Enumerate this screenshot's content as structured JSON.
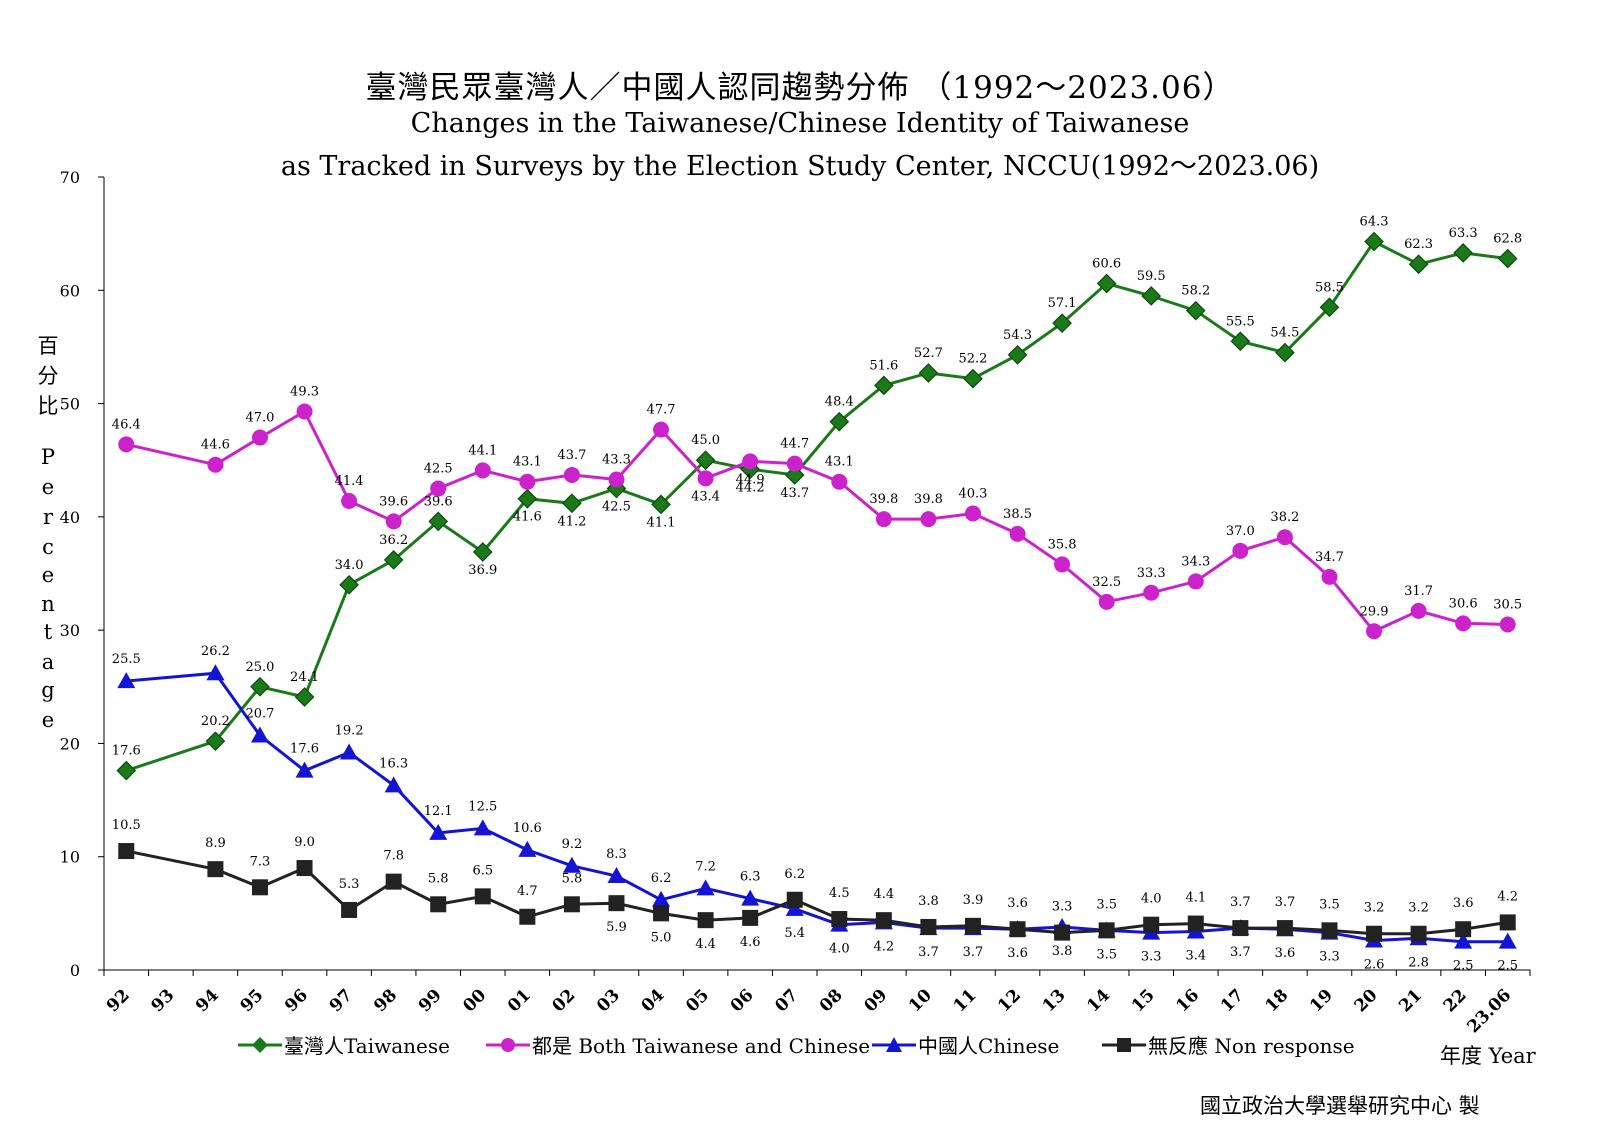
{
  "titles": {
    "zh": "臺灣民眾臺灣人／中國人認同趨勢分佈 （1992～2023.06）",
    "en1": "Changes in the Taiwanese/Chinese Identity of Taiwanese",
    "en2": "as Tracked in Surveys by the Election Study Center, NCCU(1992～2023.06)"
  },
  "ylabel_chars": [
    "百",
    "分",
    "比",
    "P",
    "e",
    "r",
    "c",
    "e",
    "n",
    "t",
    "a",
    "g",
    "e"
  ],
  "xtitle": "年度 Year",
  "credit": "國立政治大學選舉研究中心 製",
  "chart_data": {
    "type": "line",
    "ylim": [
      0,
      70
    ],
    "yticks": [
      "0",
      "10",
      "20",
      "30",
      "40",
      "50",
      "60",
      "70"
    ],
    "grid": false,
    "legend_position": "bottom",
    "categories": [
      "92",
      "93",
      "94",
      "95",
      "96",
      "97",
      "98",
      "99",
      "00",
      "01",
      "02",
      "03",
      "04",
      "05",
      "06",
      "07",
      "08",
      "09",
      "10",
      "11",
      "12",
      "13",
      "14",
      "15",
      "16",
      "17",
      "18",
      "19",
      "20",
      "21",
      "22",
      "23.06"
    ],
    "series": [
      {
        "name": "臺灣人Taiwanese",
        "color": "#1a7a1a",
        "marker": "diamond",
        "values": [
          17.6,
          null,
          20.2,
          25.0,
          24.1,
          34.0,
          36.2,
          39.6,
          36.9,
          41.6,
          41.2,
          42.5,
          41.1,
          45.0,
          44.2,
          43.7,
          48.4,
          51.6,
          52.7,
          52.2,
          54.3,
          57.1,
          60.6,
          59.5,
          58.2,
          55.5,
          54.5,
          58.5,
          64.3,
          62.3,
          63.3,
          62.8
        ],
        "labels": [
          "17.6",
          "",
          "20.2",
          "25.0",
          "24.1",
          "34.0",
          "36.2",
          "39.6",
          "36.9",
          "41.6",
          "41.2",
          "42.5",
          "41.1",
          "45.0",
          "44.2",
          "43.7",
          "48.4",
          "51.6",
          "52.7",
          "52.2",
          "54.3",
          "57.1",
          "60.6",
          "59.5",
          "58.2",
          "55.5",
          "54.5",
          "58.5",
          "64.3",
          "62.3",
          "63.3",
          "62.8"
        ]
      },
      {
        "name": "都是 Both Taiwanese and Chinese",
        "color": "#cc22cc",
        "marker": "circle",
        "values": [
          46.4,
          null,
          44.6,
          47.0,
          49.3,
          41.4,
          39.6,
          42.5,
          44.1,
          43.1,
          43.7,
          43.3,
          47.7,
          43.4,
          44.9,
          44.7,
          43.1,
          39.8,
          39.8,
          40.3,
          38.5,
          35.8,
          32.5,
          33.3,
          34.3,
          37.0,
          38.2,
          34.7,
          29.9,
          31.7,
          30.6,
          30.5
        ],
        "labels": [
          "46.4",
          "",
          "44.6",
          "47.0",
          "49.3",
          "41.4",
          "39.6",
          "42.5",
          "44.1",
          "43.1",
          "43.7",
          "43.3",
          "47.7",
          "43.4",
          "44.9",
          "44.7",
          "43.1",
          "39.8",
          "39.8",
          "40.3",
          "38.5",
          "35.8",
          "32.5",
          "33.3",
          "34.3",
          "37.0",
          "38.2",
          "34.7",
          "29.9",
          "31.7",
          "30.6",
          "30.5"
        ]
      },
      {
        "name": "中國人Chinese",
        "color": "#1414d4",
        "marker": "triangle",
        "values": [
          25.5,
          null,
          26.2,
          20.7,
          17.6,
          19.2,
          16.3,
          12.1,
          12.5,
          10.6,
          9.2,
          8.3,
          6.2,
          7.2,
          6.3,
          5.4,
          4.0,
          4.2,
          3.7,
          3.7,
          3.6,
          3.8,
          3.5,
          3.3,
          3.4,
          3.7,
          3.6,
          3.3,
          2.6,
          2.8,
          2.5,
          2.5
        ],
        "labels": [
          "25.5",
          "",
          "26.2",
          "20.7",
          "17.6",
          "19.2",
          "16.3",
          "12.1",
          "12.5",
          "10.6",
          "9.2",
          "8.3",
          "6.2",
          "7.2",
          "6.3",
          "5.4",
          "4.0",
          "4.2",
          "3.7",
          "3.7",
          "3.6",
          "3.8",
          "3.5",
          "3.3",
          "3.4",
          "3.7",
          "3.6",
          "3.3",
          "2.6",
          "2.8",
          "2.5",
          "2.5"
        ]
      },
      {
        "name": "無反應 Non response",
        "color": "#222222",
        "marker": "square",
        "values": [
          10.5,
          null,
          8.9,
          7.3,
          9.0,
          5.3,
          7.8,
          5.8,
          6.5,
          4.7,
          5.8,
          5.9,
          5.0,
          4.4,
          4.6,
          6.2,
          4.5,
          4.4,
          3.8,
          3.9,
          3.6,
          3.3,
          3.5,
          4.0,
          4.1,
          3.7,
          3.7,
          3.5,
          3.2,
          3.2,
          3.6,
          4.2
        ],
        "labels": [
          "10.5",
          "",
          "8.9",
          "7.3",
          "9.0",
          "5.3",
          "7.8",
          "5.8",
          "6.5",
          "4.7",
          "5.8",
          "5.9",
          "5.0",
          "4.4",
          "4.6",
          "6.2",
          "4.5",
          "4.4",
          "3.8",
          "3.9",
          "3.6",
          "3.3",
          "3.5",
          "4.0",
          "4.1",
          "3.7",
          "3.7",
          "3.5",
          "3.2",
          "3.2",
          "3.6",
          "4.2"
        ]
      }
    ]
  }
}
